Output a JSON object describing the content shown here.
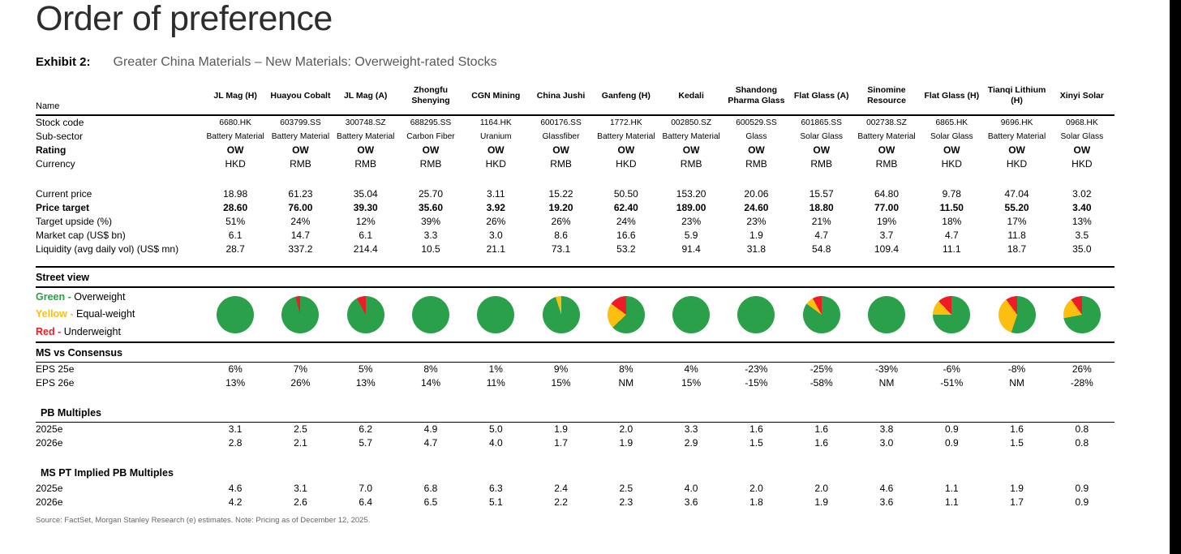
{
  "page": {
    "title": "Order of preference",
    "exhibit_label": "Exhibit 2:",
    "exhibit_title": "Greater China Materials – New Materials: Overweight-rated Stocks",
    "source_note": "Source: FactSet, Morgan Stanley Research (e) estimates. Note: Pricing as of December 12, 2025."
  },
  "colors": {
    "green": "#2AA04A",
    "yellow": "#FCBF10",
    "red": "#EE1C25"
  },
  "legend": [
    {
      "word": "Green -",
      "label": "Overweight",
      "color": "#2AA04A"
    },
    {
      "word": "Yellow -",
      "label": "Equal-weight",
      "color": "#FCBF10"
    },
    {
      "word": "Red -",
      "label": "Underweight",
      "color": "#EE1C25"
    }
  ],
  "table": {
    "row_labels": {
      "name": "Name",
      "stock_code": "Stock code",
      "sub_sector": "Sub-sector",
      "rating": "Rating",
      "currency": "Currency",
      "current_price": "Current price",
      "price_target": "Price target",
      "target_upside": "Target upside (%)",
      "market_cap": "Market cap (US$ bn)",
      "liquidity": "Liquidity (avg daily vol) (US$ mn)",
      "street_view": "Street view",
      "ms_vs_consensus": "MS vs Consensus",
      "eps_25e": "EPS 25e",
      "eps_26e": "EPS 26e",
      "pb_multiples": "PB Multiples",
      "pb_2025e": "2025e",
      "pb_2026e": "2026e",
      "ms_pt_implied": "MS PT Implied PB Multiples",
      "pt_2025e": "2025e",
      "pt_2026e": "2026e"
    },
    "columns": [
      {
        "name": "JL Mag (H)",
        "stock_code": "6680.HK",
        "sub_sector": "Battery Material",
        "rating": "OW",
        "currency": "HKD",
        "current_price": "18.98",
        "price_target": "28.60",
        "target_upside": "51%",
        "market_cap": "6.1",
        "liquidity": "28.7",
        "street_view": {
          "green": 100,
          "yellow": 0,
          "red": 0
        },
        "eps_25e": "6%",
        "eps_26e": "13%",
        "pb_2025e": "3.1",
        "pb_2026e": "2.8",
        "pt_2025e": "4.6",
        "pt_2026e": "4.2"
      },
      {
        "name": "Huayou Cobalt",
        "stock_code": "603799.SS",
        "sub_sector": "Battery Material",
        "rating": "OW",
        "currency": "RMB",
        "current_price": "61.23",
        "price_target": "76.00",
        "target_upside": "24%",
        "market_cap": "14.7",
        "liquidity": "337.2",
        "street_view": {
          "green": 96,
          "yellow": 0,
          "red": 4
        },
        "eps_25e": "7%",
        "eps_26e": "26%",
        "pb_2025e": "2.5",
        "pb_2026e": "2.1",
        "pt_2025e": "3.1",
        "pt_2026e": "2.6"
      },
      {
        "name": "JL Mag (A)",
        "stock_code": "300748.SZ",
        "sub_sector": "Battery Material",
        "rating": "OW",
        "currency": "RMB",
        "current_price": "35.04",
        "price_target": "39.30",
        "target_upside": "12%",
        "market_cap": "6.1",
        "liquidity": "214.4",
        "street_view": {
          "green": 92,
          "yellow": 0,
          "red": 8
        },
        "eps_25e": "5%",
        "eps_26e": "13%",
        "pb_2025e": "6.2",
        "pb_2026e": "5.7",
        "pt_2025e": "7.0",
        "pt_2026e": "6.4"
      },
      {
        "name": "Zhongfu Shenying",
        "stock_code": "688295.SS",
        "sub_sector": "Carbon Fiber",
        "rating": "OW",
        "currency": "RMB",
        "current_price": "25.70",
        "price_target": "35.60",
        "target_upside": "39%",
        "market_cap": "3.3",
        "liquidity": "10.5",
        "street_view": {
          "green": 100,
          "yellow": 0,
          "red": 0
        },
        "eps_25e": "8%",
        "eps_26e": "14%",
        "pb_2025e": "4.9",
        "pb_2026e": "4.7",
        "pt_2025e": "6.8",
        "pt_2026e": "6.5"
      },
      {
        "name": "CGN Mining",
        "stock_code": "1164.HK",
        "sub_sector": "Uranium",
        "rating": "OW",
        "currency": "HKD",
        "current_price": "3.11",
        "price_target": "3.92",
        "target_upside": "26%",
        "market_cap": "3.0",
        "liquidity": "21.1",
        "street_view": {
          "green": 100,
          "yellow": 0,
          "red": 0
        },
        "eps_25e": "1%",
        "eps_26e": "11%",
        "pb_2025e": "5.0",
        "pb_2026e": "4.0",
        "pt_2025e": "6.3",
        "pt_2026e": "5.1"
      },
      {
        "name": "China Jushi",
        "stock_code": "600176.SS",
        "sub_sector": "Glassfiber",
        "rating": "OW",
        "currency": "RMB",
        "current_price": "15.22",
        "price_target": "19.20",
        "target_upside": "26%",
        "market_cap": "8.6",
        "liquidity": "73.1",
        "street_view": {
          "green": 95,
          "yellow": 5,
          "red": 0
        },
        "eps_25e": "9%",
        "eps_26e": "15%",
        "pb_2025e": "1.9",
        "pb_2026e": "1.7",
        "pt_2025e": "2.4",
        "pt_2026e": "2.2"
      },
      {
        "name": "Ganfeng (H)",
        "stock_code": "1772.HK",
        "sub_sector": "Battery Material",
        "rating": "OW",
        "currency": "HKD",
        "current_price": "50.50",
        "price_target": "62.40",
        "target_upside": "24%",
        "market_cap": "16.6",
        "liquidity": "53.2",
        "street_view": {
          "green": 63,
          "yellow": 22,
          "red": 15
        },
        "eps_25e": "8%",
        "eps_26e": "NM",
        "pb_2025e": "2.0",
        "pb_2026e": "1.9",
        "pt_2025e": "2.5",
        "pt_2026e": "2.3"
      },
      {
        "name": "Kedali",
        "stock_code": "002850.SZ",
        "sub_sector": "Battery Material",
        "rating": "OW",
        "currency": "RMB",
        "current_price": "153.20",
        "price_target": "189.00",
        "target_upside": "23%",
        "market_cap": "5.9",
        "liquidity": "91.4",
        "street_view": {
          "green": 100,
          "yellow": 0,
          "red": 0
        },
        "eps_25e": "4%",
        "eps_26e": "15%",
        "pb_2025e": "3.3",
        "pb_2026e": "2.9",
        "pt_2025e": "4.0",
        "pt_2026e": "3.6"
      },
      {
        "name": "Shandong Pharma Glass",
        "stock_code": "600529.SS",
        "sub_sector": "Glass",
        "rating": "OW",
        "currency": "RMB",
        "current_price": "20.06",
        "price_target": "24.60",
        "target_upside": "23%",
        "market_cap": "1.9",
        "liquidity": "31.8",
        "street_view": {
          "green": 100,
          "yellow": 0,
          "red": 0
        },
        "eps_25e": "-23%",
        "eps_26e": "-15%",
        "pb_2025e": "1.6",
        "pb_2026e": "1.5",
        "pt_2025e": "2.0",
        "pt_2026e": "1.8"
      },
      {
        "name": "Flat Glass (A)",
        "stock_code": "601865.SS",
        "sub_sector": "Solar Glass",
        "rating": "OW",
        "currency": "RMB",
        "current_price": "15.57",
        "price_target": "18.80",
        "target_upside": "21%",
        "market_cap": "4.7",
        "liquidity": "54.8",
        "street_view": {
          "green": 85,
          "yellow": 7,
          "red": 8
        },
        "eps_25e": "-25%",
        "eps_26e": "-58%",
        "pb_2025e": "1.6",
        "pb_2026e": "1.6",
        "pt_2025e": "2.0",
        "pt_2026e": "1.9"
      },
      {
        "name": "Sinomine Resource",
        "stock_code": "002738.SZ",
        "sub_sector": "Battery Material",
        "rating": "OW",
        "currency": "RMB",
        "current_price": "64.80",
        "price_target": "77.00",
        "target_upside": "19%",
        "market_cap": "3.7",
        "liquidity": "109.4",
        "street_view": {
          "green": 100,
          "yellow": 0,
          "red": 0
        },
        "eps_25e": "-39%",
        "eps_26e": "NM",
        "pb_2025e": "3.8",
        "pb_2026e": "3.0",
        "pt_2025e": "4.6",
        "pt_2026e": "3.6"
      },
      {
        "name": "Flat Glass (H)",
        "stock_code": "6865.HK",
        "sub_sector": "Solar Glass",
        "rating": "OW",
        "currency": "HKD",
        "current_price": "9.78",
        "price_target": "11.50",
        "target_upside": "18%",
        "market_cap": "4.7",
        "liquidity": "11.1",
        "street_view": {
          "green": 75,
          "yellow": 13,
          "red": 12
        },
        "eps_25e": "-6%",
        "eps_26e": "-51%",
        "pb_2025e": "0.9",
        "pb_2026e": "0.9",
        "pt_2025e": "1.1",
        "pt_2026e": "1.1"
      },
      {
        "name": "Tianqi Lithium (H)",
        "stock_code": "9696.HK",
        "sub_sector": "Battery Material",
        "rating": "OW",
        "currency": "HKD",
        "current_price": "47.04",
        "price_target": "55.20",
        "target_upside": "17%",
        "market_cap": "11.8",
        "liquidity": "18.7",
        "street_view": {
          "green": 55,
          "yellow": 35,
          "red": 10
        },
        "eps_25e": "-8%",
        "eps_26e": "NM",
        "pb_2025e": "1.6",
        "pb_2026e": "1.5",
        "pt_2025e": "1.9",
        "pt_2026e": "1.7"
      },
      {
        "name": "Xinyi Solar",
        "stock_code": "0968.HK",
        "sub_sector": "Solar Glass",
        "rating": "OW",
        "currency": "HKD",
        "current_price": "3.02",
        "price_target": "3.40",
        "target_upside": "13%",
        "market_cap": "3.5",
        "liquidity": "35.0",
        "street_view": {
          "green": 72,
          "yellow": 18,
          "red": 10
        },
        "eps_25e": "26%",
        "eps_26e": "-28%",
        "pb_2025e": "0.8",
        "pb_2026e": "0.8",
        "pt_2025e": "0.9",
        "pt_2026e": "0.9"
      }
    ]
  }
}
